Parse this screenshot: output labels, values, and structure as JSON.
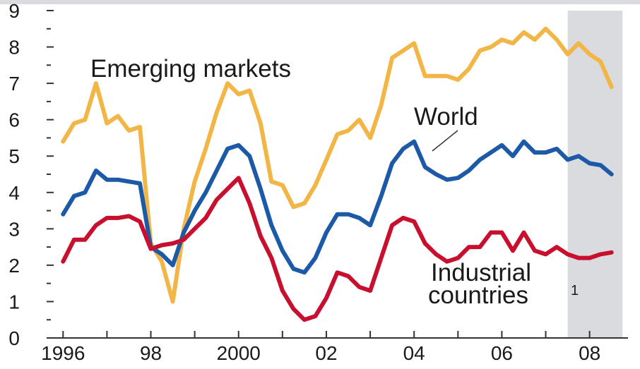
{
  "chart_data": {
    "type": "line",
    "title": "",
    "xlabel": "",
    "ylabel": "",
    "ylim": [
      0,
      9
    ],
    "xlim": [
      1995.625,
      2008.875
    ],
    "yticks": [
      "0",
      "1",
      "2",
      "3",
      "4",
      "5",
      "6",
      "7",
      "8",
      "9"
    ],
    "xticks": [
      {
        "x": 1996,
        "label": "1996"
      },
      {
        "x": 1998,
        "label": "98"
      },
      {
        "x": 2000,
        "label": "2000"
      },
      {
        "x": 2002,
        "label": "02"
      },
      {
        "x": 2004,
        "label": "04"
      },
      {
        "x": 2006,
        "label": "06"
      },
      {
        "x": 2008,
        "label": "08"
      }
    ],
    "shaded_region": {
      "from": 2007.5,
      "to": 2008.75,
      "color": "#d9dbde"
    },
    "grid": false,
    "colors": {
      "emerging": "#f2b646",
      "world": "#1c5aa8",
      "industrial": "#c8102e"
    },
    "series": [
      {
        "key": "emerging",
        "name": "Emerging markets",
        "points": [
          [
            1996.0,
            5.4
          ],
          [
            1996.25,
            5.9
          ],
          [
            1996.5,
            6.0
          ],
          [
            1996.75,
            7.0
          ],
          [
            1997.0,
            5.9
          ],
          [
            1997.25,
            6.1
          ],
          [
            1997.5,
            5.7
          ],
          [
            1997.75,
            5.8
          ],
          [
            1998.0,
            2.6
          ],
          [
            1998.25,
            2.1
          ],
          [
            1998.5,
            1.0
          ],
          [
            1998.75,
            3.0
          ],
          [
            1999.0,
            4.3
          ],
          [
            1999.25,
            5.2
          ],
          [
            1999.5,
            6.2
          ],
          [
            1999.75,
            7.0
          ],
          [
            2000.0,
            6.7
          ],
          [
            2000.25,
            6.8
          ],
          [
            2000.5,
            5.9
          ],
          [
            2000.75,
            4.3
          ],
          [
            2001.0,
            4.2
          ],
          [
            2001.25,
            3.6
          ],
          [
            2001.5,
            3.7
          ],
          [
            2001.75,
            4.2
          ],
          [
            2002.0,
            4.9
          ],
          [
            2002.25,
            5.6
          ],
          [
            2002.5,
            5.7
          ],
          [
            2002.75,
            6.0
          ],
          [
            2003.0,
            5.5
          ],
          [
            2003.25,
            6.4
          ],
          [
            2003.5,
            7.7
          ],
          [
            2003.75,
            7.9
          ],
          [
            2004.0,
            8.1
          ],
          [
            2004.25,
            7.2
          ],
          [
            2004.5,
            7.2
          ],
          [
            2004.75,
            7.2
          ],
          [
            2005.0,
            7.1
          ],
          [
            2005.25,
            7.4
          ],
          [
            2005.5,
            7.9
          ],
          [
            2005.75,
            8.0
          ],
          [
            2006.0,
            8.2
          ],
          [
            2006.25,
            8.1
          ],
          [
            2006.5,
            8.4
          ],
          [
            2006.75,
            8.2
          ],
          [
            2007.0,
            8.5
          ],
          [
            2007.25,
            8.2
          ],
          [
            2007.5,
            7.8
          ],
          [
            2007.75,
            8.1
          ],
          [
            2008.0,
            7.8
          ],
          [
            2008.25,
            7.6
          ],
          [
            2008.5,
            6.9
          ]
        ]
      },
      {
        "key": "world",
        "name": "World",
        "points": [
          [
            1996.0,
            3.4
          ],
          [
            1996.25,
            3.9
          ],
          [
            1996.5,
            4.0
          ],
          [
            1996.75,
            4.6
          ],
          [
            1997.0,
            4.35
          ],
          [
            1997.25,
            4.35
          ],
          [
            1997.5,
            4.3
          ],
          [
            1997.75,
            4.25
          ],
          [
            1998.0,
            2.5
          ],
          [
            1998.25,
            2.3
          ],
          [
            1998.5,
            2.0
          ],
          [
            1998.75,
            2.9
          ],
          [
            1999.0,
            3.5
          ],
          [
            1999.25,
            4.0
          ],
          [
            1999.5,
            4.6
          ],
          [
            1999.75,
            5.2
          ],
          [
            2000.0,
            5.3
          ],
          [
            2000.25,
            5.0
          ],
          [
            2000.5,
            4.1
          ],
          [
            2000.75,
            3.1
          ],
          [
            2001.0,
            2.4
          ],
          [
            2001.25,
            1.9
          ],
          [
            2001.5,
            1.8
          ],
          [
            2001.75,
            2.2
          ],
          [
            2002.0,
            2.9
          ],
          [
            2002.25,
            3.4
          ],
          [
            2002.5,
            3.4
          ],
          [
            2002.75,
            3.3
          ],
          [
            2003.0,
            3.1
          ],
          [
            2003.25,
            3.9
          ],
          [
            2003.5,
            4.8
          ],
          [
            2003.75,
            5.2
          ],
          [
            2004.0,
            5.4
          ],
          [
            2004.25,
            4.7
          ],
          [
            2004.5,
            4.5
          ],
          [
            2004.75,
            4.35
          ],
          [
            2005.0,
            4.4
          ],
          [
            2005.25,
            4.6
          ],
          [
            2005.5,
            4.9
          ],
          [
            2005.75,
            5.1
          ],
          [
            2006.0,
            5.3
          ],
          [
            2006.25,
            5.0
          ],
          [
            2006.5,
            5.4
          ],
          [
            2006.75,
            5.1
          ],
          [
            2007.0,
            5.1
          ],
          [
            2007.25,
            5.2
          ],
          [
            2007.5,
            4.9
          ],
          [
            2007.75,
            5.0
          ],
          [
            2008.0,
            4.8
          ],
          [
            2008.25,
            4.75
          ],
          [
            2008.5,
            4.5
          ]
        ]
      },
      {
        "key": "industrial",
        "name": "Industrial countries",
        "points": [
          [
            1996.0,
            2.1
          ],
          [
            1996.25,
            2.7
          ],
          [
            1996.5,
            2.7
          ],
          [
            1996.75,
            3.1
          ],
          [
            1997.0,
            3.3
          ],
          [
            1997.25,
            3.3
          ],
          [
            1997.5,
            3.35
          ],
          [
            1997.75,
            3.2
          ],
          [
            1998.0,
            2.45
          ],
          [
            1998.25,
            2.55
          ],
          [
            1998.5,
            2.6
          ],
          [
            1998.75,
            2.7
          ],
          [
            1999.0,
            3.0
          ],
          [
            1999.25,
            3.3
          ],
          [
            1999.5,
            3.8
          ],
          [
            1999.75,
            4.1
          ],
          [
            2000.0,
            4.4
          ],
          [
            2000.25,
            3.7
          ],
          [
            2000.5,
            2.8
          ],
          [
            2000.75,
            2.2
          ],
          [
            2001.0,
            1.3
          ],
          [
            2001.25,
            0.8
          ],
          [
            2001.5,
            0.5
          ],
          [
            2001.75,
            0.6
          ],
          [
            2002.0,
            1.1
          ],
          [
            2002.25,
            1.8
          ],
          [
            2002.5,
            1.7
          ],
          [
            2002.75,
            1.4
          ],
          [
            2003.0,
            1.3
          ],
          [
            2003.25,
            2.2
          ],
          [
            2003.5,
            3.1
          ],
          [
            2003.75,
            3.3
          ],
          [
            2004.0,
            3.2
          ],
          [
            2004.25,
            2.6
          ],
          [
            2004.5,
            2.3
          ],
          [
            2004.75,
            2.1
          ],
          [
            2005.0,
            2.2
          ],
          [
            2005.25,
            2.5
          ],
          [
            2005.5,
            2.5
          ],
          [
            2005.75,
            2.9
          ],
          [
            2006.0,
            2.9
          ],
          [
            2006.25,
            2.4
          ],
          [
            2006.5,
            2.9
          ],
          [
            2006.75,
            2.4
          ],
          [
            2007.0,
            2.3
          ],
          [
            2007.25,
            2.5
          ],
          [
            2007.5,
            2.3
          ],
          [
            2007.75,
            2.2
          ],
          [
            2008.0,
            2.2
          ],
          [
            2008.25,
            2.3
          ],
          [
            2008.5,
            2.35
          ]
        ]
      }
    ],
    "annotations": {
      "emerging": "Emerging markets",
      "world": "World",
      "industrial_line1": "Industrial",
      "industrial_line2": "countries",
      "footnote_marker": "1"
    }
  }
}
